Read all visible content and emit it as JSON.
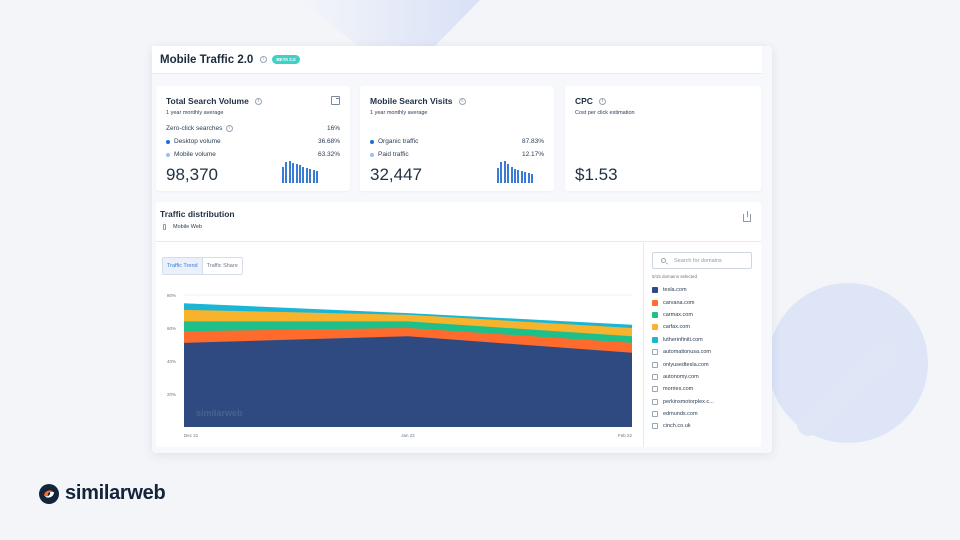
{
  "header": {
    "title": "Mobile Traffic 2.0",
    "badge": "BETA 2.0"
  },
  "cards": {
    "total_search_volume": {
      "title": "Total Search Volume",
      "subtitle": "1 year monthly average",
      "rows": [
        {
          "label": "Zero-click searches",
          "value": "16%"
        },
        {
          "label": "Desktop volume",
          "value": "36.68%",
          "color": "#1f6fd6"
        },
        {
          "label": "Mobile volume",
          "value": "63.32%",
          "color": "#9cc1f0"
        }
      ],
      "value": "98,370",
      "spark": [
        0.75,
        0.95,
        1.0,
        0.9,
        0.85,
        0.8,
        0.75,
        0.7,
        0.65,
        0.6,
        0.55
      ]
    },
    "mobile_search_visits": {
      "title": "Mobile Search Visits",
      "subtitle": "1 year monthly average",
      "rows": [
        {
          "label": "Organic traffic",
          "value": "87.83%",
          "color": "#1f6fd6"
        },
        {
          "label": "Paid traffic",
          "value": "12.17%",
          "color": "#9cc1f0"
        }
      ],
      "value": "32,447",
      "spark": [
        0.7,
        0.95,
        1.0,
        0.85,
        0.75,
        0.65,
        0.6,
        0.55,
        0.5,
        0.45,
        0.4
      ]
    },
    "cpc": {
      "title": "CPC",
      "subtitle": "Cost per click estimation",
      "value": "$1.53"
    }
  },
  "distribution": {
    "title": "Traffic distribution",
    "subtitle": "Mobile Web",
    "tabs": [
      "Traffic Trend",
      "Traffic Share"
    ],
    "watermark": "similarweb",
    "search_placeholder": "Search for domains",
    "selected_count": "5/15 domains selected",
    "domains": [
      {
        "name": "tesla.com",
        "checked": true,
        "color": "#2f4a80"
      },
      {
        "name": "carvana.com",
        "checked": true,
        "color": "#ff6b2c"
      },
      {
        "name": "carmax.com",
        "checked": true,
        "color": "#1fbf8a"
      },
      {
        "name": "carfax.com",
        "checked": true,
        "color": "#f7b32b"
      },
      {
        "name": "lutherinfiniti.com",
        "checked": true,
        "color": "#1ab6d6"
      },
      {
        "name": "automationusa.com",
        "checked": false
      },
      {
        "name": "onlyusedtesla.com",
        "checked": false
      },
      {
        "name": "autonomy.com",
        "checked": false
      },
      {
        "name": "morries.com",
        "checked": false
      },
      {
        "name": "perkinsmotorplex.c...",
        "checked": false
      },
      {
        "name": "edmunds.com",
        "checked": false
      },
      {
        "name": "cinch.co.uk",
        "checked": false
      }
    ]
  },
  "chart_data": {
    "type": "area",
    "stacked": true,
    "x": [
      "Dec 21",
      "Jan 22",
      "Feb 22"
    ],
    "yticks": [
      "20%",
      "40%",
      "60%",
      "80%"
    ],
    "ylim": [
      0,
      80
    ],
    "grid": true,
    "series": [
      {
        "name": "tesla.com",
        "color": "#2f4a80",
        "values": [
          51,
          55,
          45
        ]
      },
      {
        "name": "carvana.com",
        "color": "#ff6b2c",
        "values": [
          7,
          5,
          6
        ]
      },
      {
        "name": "carmax.com",
        "color": "#1fbf8a",
        "values": [
          6,
          4,
          4
        ]
      },
      {
        "name": "carfax.com",
        "color": "#f7b32b",
        "values": [
          7,
          4,
          5
        ]
      },
      {
        "name": "lutherinfiniti.com",
        "color": "#1ab6d6",
        "values": [
          4,
          1,
          2
        ]
      }
    ]
  },
  "brand": {
    "name": "similarweb"
  }
}
